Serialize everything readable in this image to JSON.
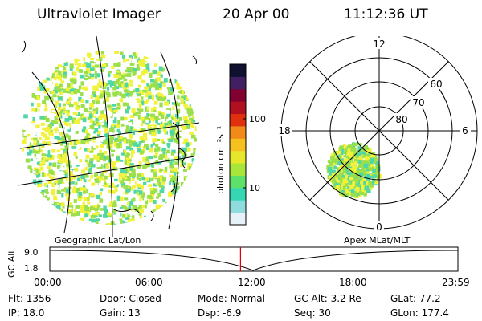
{
  "header": {
    "instrument": "Ultraviolet Imager",
    "date": "20 Apr 00",
    "time": "11:12:36 UT"
  },
  "colors": {
    "aurora_low": "#9be04a",
    "aurora_mid": "#f2f23a",
    "aurora_edge": "#4fd7a6",
    "marker": "#e00000"
  },
  "colorbar": {
    "unit_label": "photon cm⁻²s⁻¹",
    "tick_labels": [
      "100",
      "10"
    ],
    "stops": [
      "#e6f2f7",
      "#8fdcdf",
      "#35d6b4",
      "#5fe06a",
      "#a8e63a",
      "#e6e62a",
      "#f5c020",
      "#f08a18",
      "#e03010",
      "#b01020",
      "#800030",
      "#402060",
      "#101030"
    ]
  },
  "polar": {
    "mlt_labels": {
      "top": "12",
      "left": "18",
      "right": "6",
      "bottom": "0"
    },
    "lat_labels": [
      "60",
      "70",
      "80"
    ]
  },
  "panel_labels": {
    "left": "Geographic Lat/Lon",
    "right": "Apex MLat/MLT"
  },
  "timeline": {
    "ylabel": "GC Alt",
    "y_ticks": [
      "9.0",
      "1.8"
    ],
    "x_ticks": [
      "00:00",
      "06:00",
      "12:00",
      "18:00",
      "23:59"
    ],
    "current_time_fraction": 0.4673
  },
  "info": {
    "flt": "Flt: 1356",
    "ip": "IP: 18.0",
    "door": "Door: Closed",
    "gain": "Gain: 13",
    "mode": "Mode: Normal",
    "dsp": "Dsp:    -6.9",
    "gcalt": "GC Alt: 3.2 Re",
    "seq": "Seq: 30",
    "glat": "GLat:  77.2",
    "glon": "GLon: 177.4"
  }
}
